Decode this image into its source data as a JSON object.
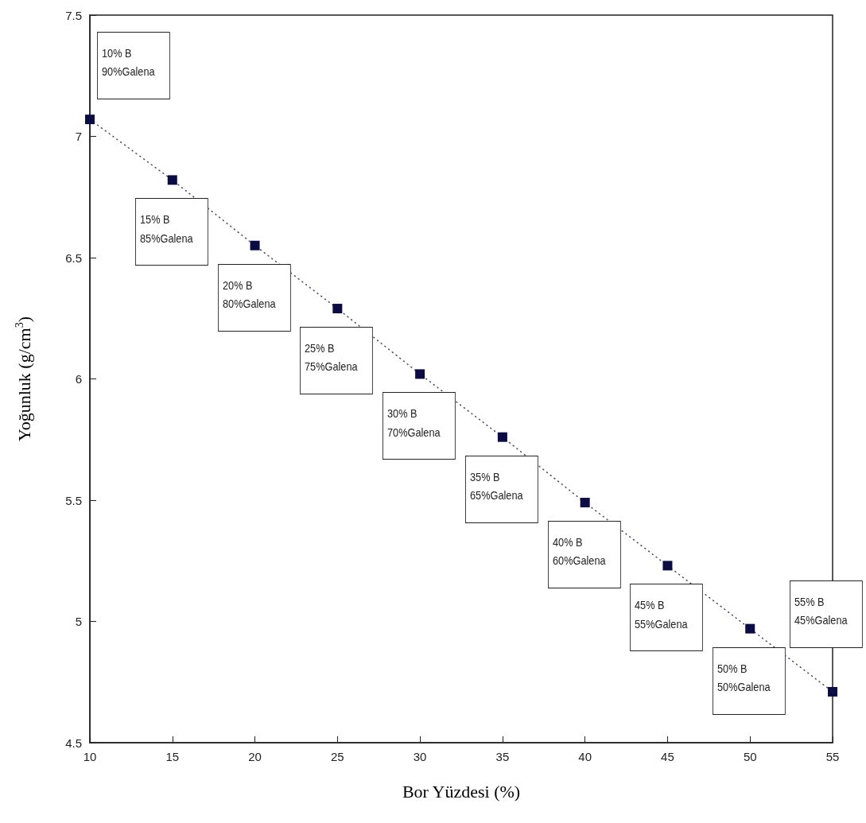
{
  "chart_data": {
    "type": "line",
    "xlabel": "Bor Yüzdesi (%)",
    "ylabel": "Yoğunluk (g/cm$^{3}$)",
    "x": [
      10,
      15,
      20,
      25,
      30,
      35,
      40,
      45,
      50,
      55
    ],
    "series": [
      {
        "color": "#0b0b45",
        "values": [
          7.07,
          6.82,
          6.55,
          6.29,
          6.02,
          5.76,
          5.49,
          5.23,
          4.97,
          4.71
        ]
      }
    ],
    "marker": "square",
    "line_style": "dotted",
    "grid": false,
    "xlim": [
      10,
      55
    ],
    "xticks": [
      10,
      15,
      20,
      25,
      30,
      35,
      40,
      45,
      50,
      55
    ],
    "ylim": [
      4.5,
      7.5
    ],
    "yticks": [
      4.5,
      5,
      5.5,
      6,
      6.5,
      7,
      7.5
    ],
    "annotations": [
      "10% B\n90%Galena",
      "15% B\n85%Galena",
      "20% B\n80%Galena",
      "25% B\n75%Galena",
      "30% B\n70%Galena",
      "35% B\n65%Galena",
      "40% B\n60%Galena",
      "45% B\n55%Galena",
      "50% B\n50%Galena",
      "55% B\n45%Galena"
    ]
  }
}
